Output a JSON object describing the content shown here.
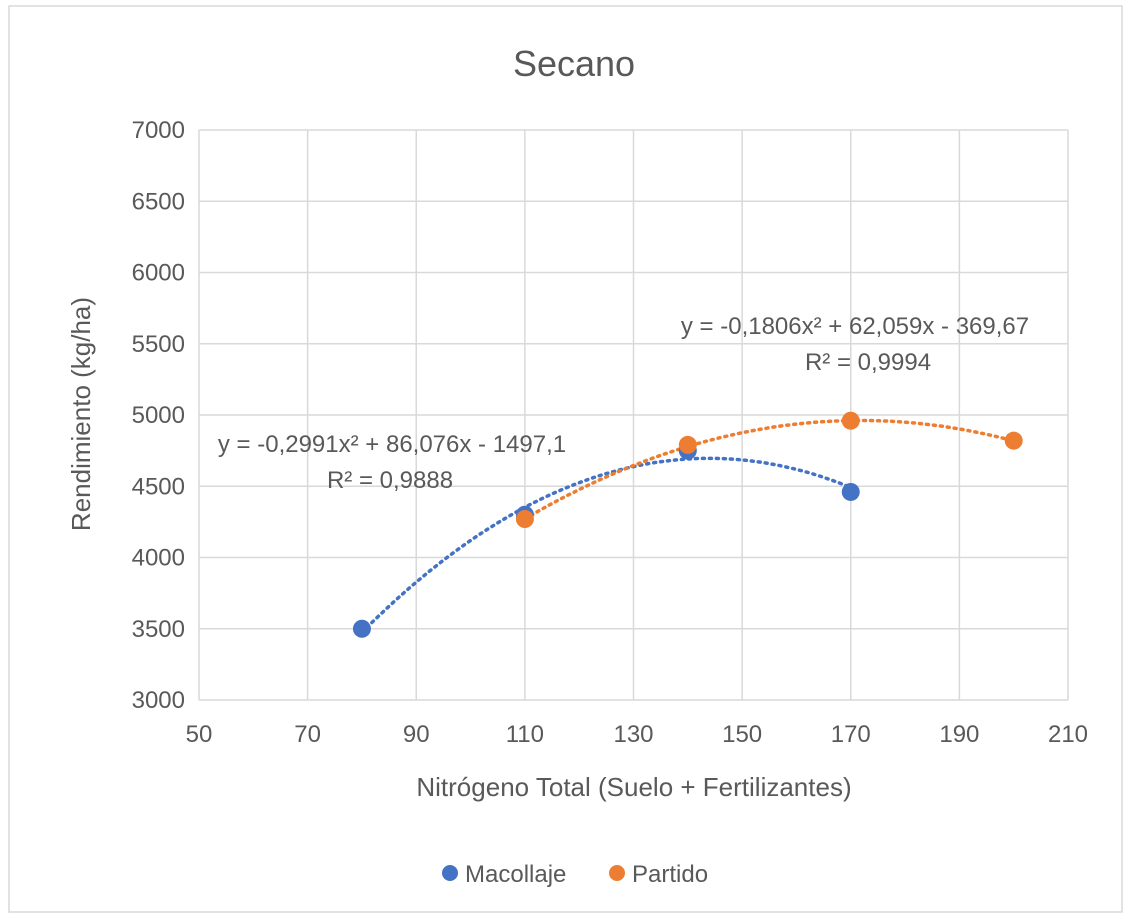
{
  "chart_data": {
    "type": "scatter",
    "title": "Secano",
    "xlabel": "Nitrógeno Total (Suelo + Fertilizantes)",
    "ylabel": "Rendimiento (kg/ha)",
    "xlim": [
      50,
      210
    ],
    "ylim": [
      3000,
      7000
    ],
    "xticks": [
      50,
      70,
      90,
      110,
      130,
      150,
      170,
      190,
      210
    ],
    "yticks": [
      3000,
      3500,
      4000,
      4500,
      5000,
      5500,
      6000,
      6500,
      7000
    ],
    "grid": true,
    "legend_position": "bottom",
    "series": [
      {
        "name": "Macollaje",
        "color": "#4472C4",
        "x": [
          80,
          110,
          140,
          170
        ],
        "y": [
          3500,
          4300,
          4750,
          4460
        ],
        "trendline": {
          "type": "polynomial",
          "coefficients": [
            -0.2991,
            86.076,
            -1497.1
          ],
          "x_range": [
            80,
            170
          ],
          "equation": "y = -0,2991x² + 86,076x - 1497,1",
          "r2": "R² = 0,9888"
        }
      },
      {
        "name": "Partido",
        "color": "#ED7D31",
        "x": [
          110,
          140,
          170,
          200
        ],
        "y": [
          4270,
          4790,
          4960,
          4820
        ],
        "trendline": {
          "type": "polynomial",
          "coefficients": [
            -0.1806,
            62.059,
            -369.67
          ],
          "x_range": [
            110,
            200
          ],
          "equation": "y = -0,1806x² + 62,059x - 369,67",
          "r2": "R² = 0,9994"
        }
      }
    ]
  }
}
